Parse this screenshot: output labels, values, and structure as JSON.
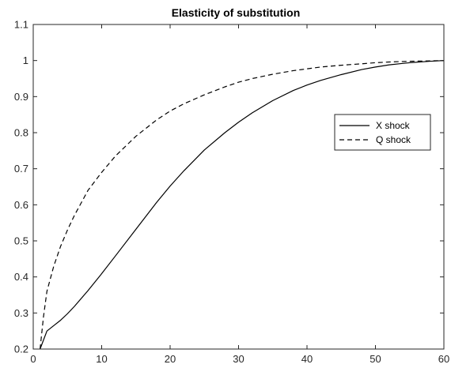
{
  "chart_data": {
    "type": "line",
    "title": "Elasticity of substitution",
    "xlabel": "",
    "ylabel": "",
    "xlim": [
      0,
      60
    ],
    "ylim": [
      0.2,
      1.1
    ],
    "xticks": [
      0,
      10,
      20,
      30,
      40,
      50,
      60
    ],
    "yticks": [
      0.2,
      0.3,
      0.4,
      0.5,
      0.6,
      0.7,
      0.8,
      0.9,
      1.0,
      1.1
    ],
    "xtick_labels": [
      "0",
      "10",
      "20",
      "30",
      "40",
      "50",
      "60"
    ],
    "ytick_labels": [
      "0.2",
      "0.3",
      "0.4",
      "0.5",
      "0.6",
      "0.7",
      "0.8",
      "0.9",
      "1",
      "1.1"
    ],
    "grid": false,
    "legend_position": "right",
    "series": [
      {
        "name": "X shock",
        "style": "solid",
        "color": "#000000",
        "x": [
          1,
          2,
          3,
          4,
          5,
          6,
          8,
          10,
          12,
          15,
          18,
          20,
          22,
          25,
          28,
          30,
          32,
          35,
          38,
          40,
          42,
          45,
          48,
          50,
          52,
          55,
          58,
          60
        ],
        "y": [
          0.2,
          0.25,
          0.265,
          0.28,
          0.298,
          0.318,
          0.362,
          0.409,
          0.458,
          0.532,
          0.606,
          0.652,
          0.694,
          0.752,
          0.8,
          0.829,
          0.855,
          0.889,
          0.917,
          0.932,
          0.945,
          0.961,
          0.975,
          0.982,
          0.988,
          0.994,
          0.998,
          1.0
        ]
      },
      {
        "name": "Q shock",
        "style": "dashed",
        "color": "#000000",
        "x": [
          1,
          1.5,
          2,
          3,
          4,
          5,
          6,
          8,
          10,
          12,
          15,
          18,
          20,
          22,
          25,
          28,
          30,
          32,
          35,
          38,
          40,
          42,
          45,
          48,
          50,
          52,
          55,
          58,
          60
        ],
        "y": [
          0.2,
          0.29,
          0.36,
          0.43,
          0.485,
          0.53,
          0.57,
          0.64,
          0.69,
          0.735,
          0.79,
          0.835,
          0.86,
          0.88,
          0.905,
          0.927,
          0.94,
          0.95,
          0.962,
          0.972,
          0.977,
          0.982,
          0.987,
          0.991,
          0.994,
          0.996,
          0.998,
          0.999,
          1.0
        ]
      }
    ]
  }
}
